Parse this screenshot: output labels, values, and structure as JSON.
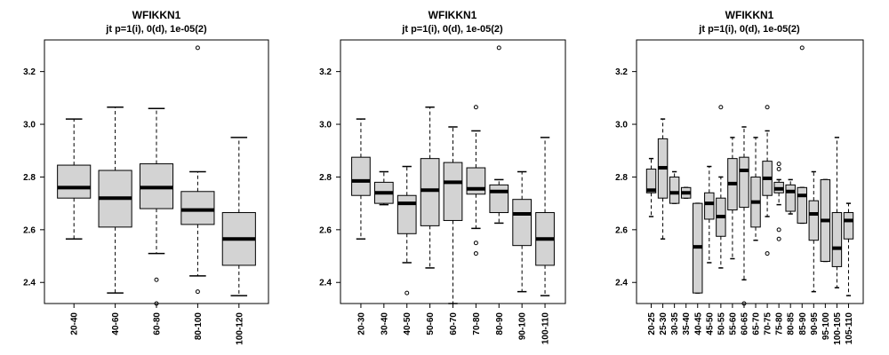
{
  "chart_data": [
    {
      "type": "box",
      "title": "WFIKKN1",
      "subtitle": "jt p=1(i), 0(d), 1e-05(2)",
      "ylim": [
        2.32,
        3.32
      ],
      "yticks": [
        "2.4",
        "2.6",
        "2.8",
        "3.0",
        "3.2"
      ],
      "categories": [
        "20-40",
        "40-60",
        "60-80",
        "80-100",
        "100-120"
      ],
      "boxes": [
        {
          "whislo": 2.565,
          "q1": 2.72,
          "med": 2.76,
          "q3": 2.845,
          "whishi": 3.02,
          "fliers": []
        },
        {
          "whislo": 2.36,
          "q1": 2.61,
          "med": 2.72,
          "q3": 2.825,
          "whishi": 3.065,
          "fliers": []
        },
        {
          "whislo": 2.51,
          "q1": 2.68,
          "med": 2.76,
          "q3": 2.85,
          "whishi": 3.06,
          "fliers": [
            2.41,
            2.32
          ]
        },
        {
          "whislo": 2.425,
          "q1": 2.62,
          "med": 2.675,
          "q3": 2.745,
          "whishi": 2.82,
          "fliers": [
            3.29,
            2.365
          ]
        },
        {
          "whislo": 2.35,
          "q1": 2.465,
          "med": 2.565,
          "q3": 2.665,
          "whishi": 2.95,
          "fliers": []
        }
      ]
    },
    {
      "type": "box",
      "title": "WFIKKN1",
      "subtitle": "jt p=1(i), 0(d), 1e-05(2)",
      "ylim": [
        2.32,
        3.32
      ],
      "yticks": [
        "2.4",
        "2.6",
        "2.8",
        "3.0",
        "3.2"
      ],
      "categories": [
        "20-30",
        "30-40",
        "40-50",
        "50-60",
        "60-70",
        "70-80",
        "80-90",
        "90-100",
        "100-110"
      ],
      "boxes": [
        {
          "whislo": 2.565,
          "q1": 2.73,
          "med": 2.785,
          "q3": 2.875,
          "whishi": 3.02,
          "fliers": []
        },
        {
          "whislo": 2.695,
          "q1": 2.7,
          "med": 2.74,
          "q3": 2.78,
          "whishi": 2.82,
          "fliers": []
        },
        {
          "whislo": 2.475,
          "q1": 2.585,
          "med": 2.7,
          "q3": 2.73,
          "whishi": 2.84,
          "fliers": [
            2.36
          ]
        },
        {
          "whislo": 2.455,
          "q1": 2.615,
          "med": 2.75,
          "q3": 2.87,
          "whishi": 3.065,
          "fliers": []
        },
        {
          "whislo": 2.32,
          "q1": 2.635,
          "med": 2.78,
          "q3": 2.855,
          "whishi": 2.99,
          "fliers": []
        },
        {
          "whislo": 2.605,
          "q1": 2.735,
          "med": 2.755,
          "q3": 2.835,
          "whishi": 2.975,
          "fliers": [
            3.065,
            2.55,
            2.51
          ]
        },
        {
          "whislo": 2.625,
          "q1": 2.665,
          "med": 2.745,
          "q3": 2.77,
          "whishi": 2.79,
          "fliers": [
            3.29
          ]
        },
        {
          "whislo": 2.365,
          "q1": 2.54,
          "med": 2.66,
          "q3": 2.715,
          "whishi": 2.82,
          "fliers": []
        },
        {
          "whislo": 2.35,
          "q1": 2.465,
          "med": 2.565,
          "q3": 2.665,
          "whishi": 2.95,
          "fliers": []
        }
      ]
    },
    {
      "type": "box",
      "title": "WFIKKN1",
      "subtitle": "jt p=1(i), 0(d), 1e-05(2)",
      "ylim": [
        2.32,
        3.32
      ],
      "yticks": [
        "2.4",
        "2.6",
        "2.8",
        "3.0",
        "3.2"
      ],
      "categories": [
        "20-25",
        "25-30",
        "30-35",
        "35-40",
        "40-45",
        "45-50",
        "50-55",
        "55-60",
        "60-65",
        "65-70",
        "70-75",
        "75-80",
        "80-85",
        "85-90",
        "90-95",
        "95-100",
        "100-105",
        "105-110"
      ],
      "boxes": [
        {
          "whislo": 2.65,
          "q1": 2.74,
          "med": 2.75,
          "q3": 2.83,
          "whishi": 2.87,
          "fliers": []
        },
        {
          "whislo": 2.565,
          "q1": 2.72,
          "med": 2.835,
          "q3": 2.945,
          "whishi": 3.02,
          "fliers": []
        },
        {
          "whislo": 2.7,
          "q1": 2.7,
          "med": 2.74,
          "q3": 2.8,
          "whishi": 2.82,
          "fliers": []
        },
        {
          "whislo": 2.72,
          "q1": 2.72,
          "med": 2.74,
          "q3": 2.76,
          "whishi": 2.76,
          "fliers": []
        },
        {
          "whislo": 2.36,
          "q1": 2.36,
          "med": 2.535,
          "q3": 2.7,
          "whishi": 2.7,
          "fliers": []
        },
        {
          "whislo": 2.475,
          "q1": 2.64,
          "med": 2.7,
          "q3": 2.74,
          "whishi": 2.84,
          "fliers": []
        },
        {
          "whislo": 2.455,
          "q1": 2.575,
          "med": 2.65,
          "q3": 2.72,
          "whishi": 2.8,
          "fliers": [
            3.065
          ]
        },
        {
          "whislo": 2.49,
          "q1": 2.675,
          "med": 2.775,
          "q3": 2.87,
          "whishi": 2.95,
          "fliers": []
        },
        {
          "whislo": 2.41,
          "q1": 2.685,
          "med": 2.825,
          "q3": 2.875,
          "whishi": 2.99,
          "fliers": [
            2.32
          ]
        },
        {
          "whislo": 2.56,
          "q1": 2.61,
          "med": 2.705,
          "q3": 2.8,
          "whishi": 2.95,
          "fliers": []
        },
        {
          "whislo": 2.65,
          "q1": 2.73,
          "med": 2.795,
          "q3": 2.86,
          "whishi": 2.975,
          "fliers": [
            3.065,
            2.51
          ]
        },
        {
          "whislo": 2.695,
          "q1": 2.74,
          "med": 2.755,
          "q3": 2.78,
          "whishi": 2.79,
          "fliers": [
            2.85,
            2.83,
            2.6,
            2.565
          ]
        },
        {
          "whislo": 2.66,
          "q1": 2.67,
          "med": 2.745,
          "q3": 2.77,
          "whishi": 2.79,
          "fliers": []
        },
        {
          "whislo": 2.625,
          "q1": 2.625,
          "med": 2.73,
          "q3": 2.76,
          "whishi": 2.76,
          "fliers": [
            3.29
          ]
        },
        {
          "whislo": 2.365,
          "q1": 2.56,
          "med": 2.66,
          "q3": 2.71,
          "whishi": 2.82,
          "fliers": []
        },
        {
          "whislo": 2.48,
          "q1": 2.48,
          "med": 2.635,
          "q3": 2.79,
          "whishi": 2.79,
          "fliers": []
        },
        {
          "whislo": 2.38,
          "q1": 2.46,
          "med": 2.53,
          "q3": 2.665,
          "whishi": 2.95,
          "fliers": []
        },
        {
          "whislo": 2.35,
          "q1": 2.565,
          "med": 2.635,
          "q3": 2.665,
          "whishi": 2.7,
          "fliers": []
        }
      ]
    }
  ]
}
